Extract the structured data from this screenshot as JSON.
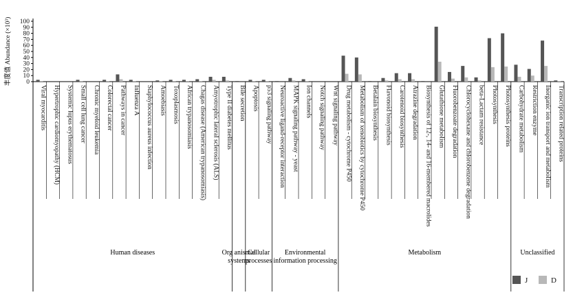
{
  "chart_data": {
    "type": "bar",
    "y_label": "丰度值 Abundance (×10³)",
    "groups": [
      {
        "name": "Human diseases",
        "categories": [
          "Viral myocarditis",
          "Hypertrophic cardiomyopathy (HCM)",
          "Systemic lupus erythematosus",
          "Small cell lung cancer",
          "Chronic myeloid leukemia",
          "Colorectal cancer",
          "Pathways in cancer",
          "Influenza A",
          "Staphylococcus aureus infection",
          "Amoebiasis",
          "Toxoplasmosis",
          "African trypanosomiasis",
          "Chagas disease (American trypanosomiasis)",
          "Amyotrophic lateral sclerosis (ALS)",
          "Type II diabetes mellitus"
        ]
      },
      {
        "name": "Org anismal systems",
        "categories": [
          "Bile secretion"
        ]
      },
      {
        "name": "Cellular processes",
        "categories": [
          "Apoptosis",
          "p53 signaling pathway"
        ]
      },
      {
        "name": "Environmental information processing",
        "categories": [
          "Neuroactive ligand-receptor interaction",
          "MAPK signaling pathway - yeast",
          "Ion channels",
          "Notch signaling pathway",
          "Wnt signaling pathway"
        ]
      },
      {
        "name": "Metabolism",
        "categories": [
          "Drug metabolism - cytochrome P450",
          "Metabolism of xenobiotics by cytochrome P450",
          "Betalain biosynthesis",
          "Flavonoid biosynthesis",
          "Carotenoid biosynthesis",
          "Atrazine degradation",
          "Biosynthesis of 12-, 14- and 16-membered macrolides",
          "Glutathione metabolism",
          "Fluorobenzoate degradation",
          "Chlorocyclohexane and chlorobenzene degradation",
          "beta-Lactam resistance",
          "Photosynthesis",
          "Photosynthesis proteins"
        ]
      },
      {
        "name": "Unclassified",
        "categories": [
          "Carbohydrate metabolism",
          "Restriction enzyme",
          "Inorganic ion transport and metabolism",
          "Transcription related proteins"
        ]
      }
    ],
    "series": [
      {
        "name": "J",
        "color": "#555555",
        "values": [
          3,
          0,
          0,
          3,
          0,
          3,
          12,
          3,
          0,
          2,
          3,
          3,
          4,
          8,
          8,
          1,
          3,
          3,
          1,
          6,
          4,
          0,
          0,
          43,
          40,
          1,
          6,
          14,
          14,
          1,
          91,
          16,
          26,
          7,
          72,
          80,
          28,
          21,
          68,
          2
        ]
      },
      {
        "name": "D",
        "color": "#b8b8b8",
        "values": [
          1,
          0,
          0,
          1,
          0,
          1,
          4,
          1,
          0,
          1,
          1,
          1,
          1,
          3,
          2,
          0,
          1,
          1,
          0,
          2,
          1,
          0,
          0,
          13,
          12,
          0,
          2,
          4,
          4,
          0,
          33,
          5,
          7,
          2,
          24,
          25,
          8,
          10,
          26,
          1
        ]
      }
    ],
    "ylim": [
      0,
      100
    ],
    "yticks": [
      0,
      10,
      20,
      30,
      40,
      50,
      60,
      70,
      80,
      90,
      100
    ],
    "legend": "bottom-right"
  }
}
